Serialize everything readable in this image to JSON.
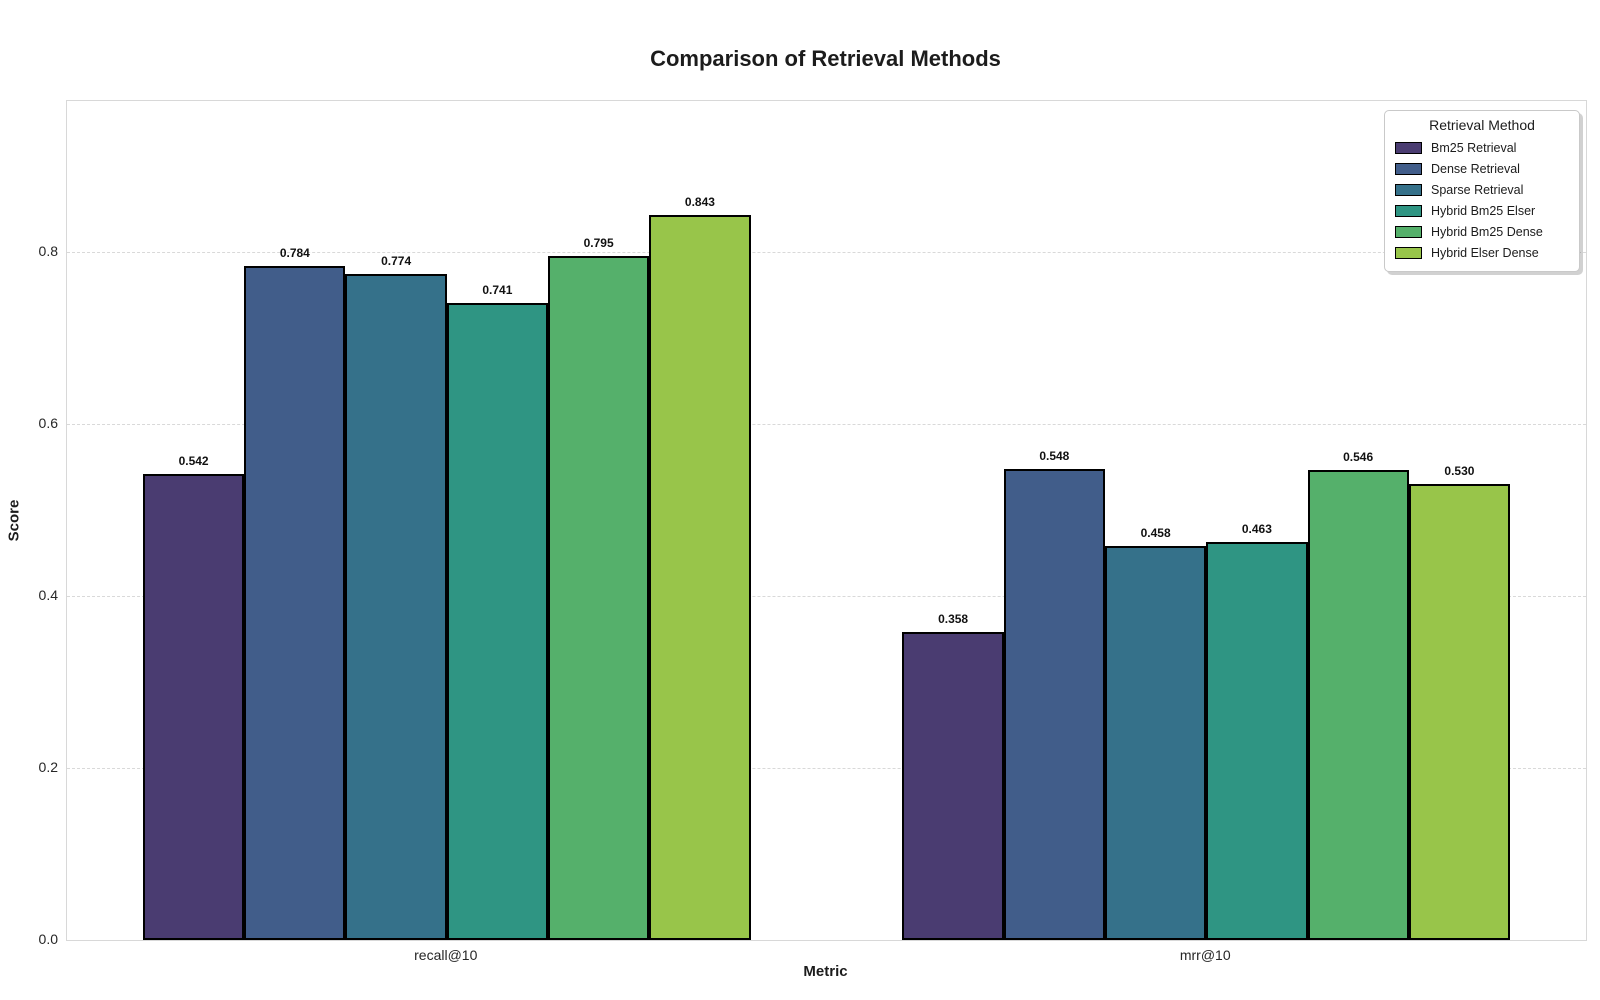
{
  "chart_data": {
    "type": "bar",
    "title": "Comparison of Retrieval Methods",
    "xlabel": "Metric",
    "ylabel": "Score",
    "categories": [
      "recall@10",
      "mrr@10"
    ],
    "series": [
      {
        "name": "Bm25 Retrieval",
        "color": "#4a3c71",
        "values": [
          0.542,
          0.358
        ]
      },
      {
        "name": "Dense Retrieval",
        "color": "#415d8a",
        "values": [
          0.784,
          0.548
        ]
      },
      {
        "name": "Sparse Retrieval",
        "color": "#35718a",
        "values": [
          0.774,
          0.458
        ]
      },
      {
        "name": "Hybrid Bm25 Elser",
        "color": "#2f9583",
        "values": [
          0.741,
          0.463
        ]
      },
      {
        "name": "Hybrid Bm25 Dense",
        "color": "#55b06b",
        "values": [
          0.795,
          0.546
        ]
      },
      {
        "name": "Hybrid Elser Dense",
        "color": "#98c54a",
        "values": [
          0.843,
          0.53
        ]
      }
    ],
    "yticks": {
      "values": [
        0.0,
        0.2,
        0.4,
        0.6,
        0.8
      ],
      "labels": [
        "0.0",
        "0.2",
        "0.4",
        "0.6",
        "0.8"
      ]
    },
    "ylim": [
      0,
      0.9756
    ],
    "grid": true,
    "legend": {
      "title": "Retrieval Method",
      "position": "upper-right"
    },
    "value_label_decimals": 3,
    "bar_edge_color": "#000000"
  }
}
